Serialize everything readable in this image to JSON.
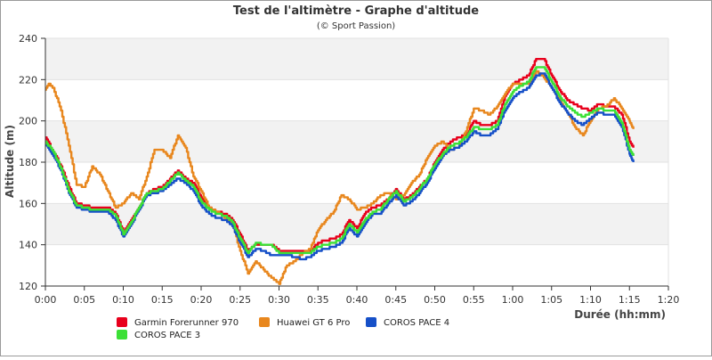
{
  "chart_data": {
    "type": "line",
    "title": "Test de l'altimètre - Graphe d'altitude",
    "subtitle": "(© Sport Passion)",
    "xlabel": "Durée (hh:mm)",
    "ylabel": "Altitude (m)",
    "xlim": [
      0,
      80
    ],
    "ylim": [
      120,
      240
    ],
    "x_ticks": [
      0,
      5,
      10,
      15,
      20,
      25,
      30,
      35,
      40,
      45,
      50,
      55,
      60,
      65,
      70,
      75,
      80
    ],
    "x_tick_labels": [
      "0:00",
      "0:05",
      "0:10",
      "0:15",
      "0:20",
      "0:25",
      "0:30",
      "0:35",
      "0:40",
      "0:45",
      "0:50",
      "0:55",
      "1:00",
      "1:05",
      "1:10",
      "1:15",
      "1:20"
    ],
    "y_ticks": [
      120,
      140,
      160,
      180,
      200,
      220,
      240
    ],
    "y_tick_labels": [
      "120",
      "140",
      "160",
      "180",
      "200",
      "220",
      "240"
    ],
    "grid": "horizontal",
    "legend_position": "bottom",
    "series": [
      {
        "name": "Garmin Forerunner 970",
        "color": "#e8001c",
        "points": [
          [
            0,
            192
          ],
          [
            1,
            185
          ],
          [
            2,
            178
          ],
          [
            3,
            168
          ],
          [
            4,
            160
          ],
          [
            5,
            159
          ],
          [
            6,
            158
          ],
          [
            7,
            158
          ],
          [
            8,
            158
          ],
          [
            9,
            155
          ],
          [
            10,
            146
          ],
          [
            11,
            152
          ],
          [
            12,
            158
          ],
          [
            13,
            165
          ],
          [
            14,
            167
          ],
          [
            15,
            168
          ],
          [
            16,
            172
          ],
          [
            17,
            176
          ],
          [
            18,
            172
          ],
          [
            19,
            170
          ],
          [
            20,
            163
          ],
          [
            21,
            158
          ],
          [
            22,
            156
          ],
          [
            23,
            155
          ],
          [
            24,
            152
          ],
          [
            25,
            145
          ],
          [
            26,
            137
          ],
          [
            27,
            140
          ],
          [
            28,
            140
          ],
          [
            29,
            140
          ],
          [
            30,
            137
          ],
          [
            31,
            137
          ],
          [
            32,
            137
          ],
          [
            33,
            137
          ],
          [
            34,
            137
          ],
          [
            35,
            141
          ],
          [
            36,
            142
          ],
          [
            37,
            143
          ],
          [
            38,
            145
          ],
          [
            39,
            152
          ],
          [
            40,
            148
          ],
          [
            41,
            155
          ],
          [
            42,
            158
          ],
          [
            43,
            159
          ],
          [
            44,
            162
          ],
          [
            45,
            167
          ],
          [
            46,
            162
          ],
          [
            47,
            164
          ],
          [
            48,
            168
          ],
          [
            49,
            172
          ],
          [
            50,
            180
          ],
          [
            51,
            186
          ],
          [
            52,
            190
          ],
          [
            53,
            192
          ],
          [
            54,
            193
          ],
          [
            55,
            200
          ],
          [
            56,
            198
          ],
          [
            57,
            198
          ],
          [
            58,
            200
          ],
          [
            59,
            212
          ],
          [
            60,
            218
          ],
          [
            61,
            220
          ],
          [
            62,
            222
          ],
          [
            63,
            230
          ],
          [
            64,
            230
          ],
          [
            65,
            222
          ],
          [
            66,
            215
          ],
          [
            67,
            210
          ],
          [
            68,
            208
          ],
          [
            69,
            206
          ],
          [
            70,
            205
          ],
          [
            71,
            208
          ],
          [
            72,
            207
          ],
          [
            73,
            207
          ],
          [
            74,
            203
          ],
          [
            75,
            190
          ],
          [
            75.5,
            187
          ]
        ]
      },
      {
        "name": "Huawei GT 6 Pro",
        "color": "#e8871e",
        "points": [
          [
            0,
            215
          ],
          [
            0.5,
            218
          ],
          [
            1,
            216
          ],
          [
            2,
            205
          ],
          [
            3,
            188
          ],
          [
            4,
            169
          ],
          [
            5,
            168
          ],
          [
            6,
            178
          ],
          [
            7,
            174
          ],
          [
            8,
            166
          ],
          [
            9,
            158
          ],
          [
            10,
            160
          ],
          [
            11,
            165
          ],
          [
            12,
            162
          ],
          [
            13,
            173
          ],
          [
            14,
            186
          ],
          [
            15,
            186
          ],
          [
            16,
            182
          ],
          [
            17,
            193
          ],
          [
            18,
            187
          ],
          [
            19,
            173
          ],
          [
            20,
            166
          ],
          [
            21,
            158
          ],
          [
            22,
            156
          ],
          [
            23,
            153
          ],
          [
            24,
            150
          ],
          [
            25,
            137
          ],
          [
            26,
            126
          ],
          [
            27,
            132
          ],
          [
            28,
            128
          ],
          [
            29,
            124
          ],
          [
            30,
            121
          ],
          [
            31,
            130
          ],
          [
            32,
            132
          ],
          [
            33,
            136
          ],
          [
            34,
            138
          ],
          [
            35,
            147
          ],
          [
            36,
            152
          ],
          [
            37,
            156
          ],
          [
            38,
            164
          ],
          [
            39,
            162
          ],
          [
            40,
            157
          ],
          [
            41,
            158
          ],
          [
            42,
            160
          ],
          [
            43,
            164
          ],
          [
            44,
            165
          ],
          [
            45,
            162
          ],
          [
            46,
            164
          ],
          [
            47,
            170
          ],
          [
            48,
            174
          ],
          [
            49,
            182
          ],
          [
            50,
            188
          ],
          [
            51,
            190
          ],
          [
            52,
            186
          ],
          [
            53,
            187
          ],
          [
            54,
            195
          ],
          [
            55,
            206
          ],
          [
            56,
            205
          ],
          [
            57,
            203
          ],
          [
            58,
            207
          ],
          [
            59,
            213
          ],
          [
            60,
            218
          ],
          [
            61,
            218
          ],
          [
            62,
            218
          ],
          [
            63,
            224
          ],
          [
            64,
            221
          ],
          [
            65,
            216
          ],
          [
            66,
            210
          ],
          [
            67,
            204
          ],
          [
            68,
            197
          ],
          [
            69,
            193
          ],
          [
            70,
            200
          ],
          [
            71,
            206
          ],
          [
            72,
            207
          ],
          [
            73,
            211
          ],
          [
            74,
            206
          ],
          [
            75,
            200
          ],
          [
            75.5,
            196
          ]
        ]
      },
      {
        "name": "COROS PACE 4",
        "color": "#1650c8",
        "points": [
          [
            0,
            189
          ],
          [
            1,
            183
          ],
          [
            2,
            176
          ],
          [
            3,
            165
          ],
          [
            4,
            158
          ],
          [
            5,
            157
          ],
          [
            6,
            156
          ],
          [
            7,
            156
          ],
          [
            8,
            156
          ],
          [
            9,
            152
          ],
          [
            10,
            144
          ],
          [
            11,
            150
          ],
          [
            12,
            157
          ],
          [
            13,
            164
          ],
          [
            14,
            165
          ],
          [
            15,
            166
          ],
          [
            16,
            169
          ],
          [
            17,
            172
          ],
          [
            18,
            170
          ],
          [
            19,
            166
          ],
          [
            20,
            159
          ],
          [
            21,
            155
          ],
          [
            22,
            153
          ],
          [
            23,
            152
          ],
          [
            24,
            149
          ],
          [
            25,
            141
          ],
          [
            26,
            134
          ],
          [
            27,
            138
          ],
          [
            28,
            137
          ],
          [
            29,
            135
          ],
          [
            30,
            135
          ],
          [
            31,
            135
          ],
          [
            32,
            134
          ],
          [
            33,
            133
          ],
          [
            34,
            134
          ],
          [
            35,
            137
          ],
          [
            36,
            138
          ],
          [
            37,
            139
          ],
          [
            38,
            141
          ],
          [
            39,
            148
          ],
          [
            40,
            144
          ],
          [
            41,
            150
          ],
          [
            42,
            155
          ],
          [
            43,
            155
          ],
          [
            44,
            160
          ],
          [
            45,
            164
          ],
          [
            46,
            159
          ],
          [
            47,
            161
          ],
          [
            48,
            165
          ],
          [
            49,
            170
          ],
          [
            50,
            177
          ],
          [
            51,
            183
          ],
          [
            52,
            186
          ],
          [
            53,
            187
          ],
          [
            54,
            190
          ],
          [
            55,
            195
          ],
          [
            56,
            193
          ],
          [
            57,
            193
          ],
          [
            58,
            196
          ],
          [
            59,
            205
          ],
          [
            60,
            211
          ],
          [
            61,
            214
          ],
          [
            62,
            216
          ],
          [
            63,
            222
          ],
          [
            64,
            223
          ],
          [
            65,
            216
          ],
          [
            66,
            209
          ],
          [
            67,
            204
          ],
          [
            68,
            200
          ],
          [
            69,
            198
          ],
          [
            70,
            201
          ],
          [
            71,
            204
          ],
          [
            72,
            203
          ],
          [
            73,
            203
          ],
          [
            74,
            197
          ],
          [
            75,
            184
          ],
          [
            75.5,
            180
          ]
        ]
      },
      {
        "name": "COROS PACE 3",
        "color": "#3ce036",
        "points": [
          [
            0,
            190
          ],
          [
            1,
            185
          ],
          [
            2,
            177
          ],
          [
            3,
            166
          ],
          [
            4,
            159
          ],
          [
            5,
            158
          ],
          [
            6,
            157
          ],
          [
            7,
            157
          ],
          [
            8,
            157
          ],
          [
            9,
            154
          ],
          [
            10,
            145
          ],
          [
            11,
            151
          ],
          [
            12,
            158
          ],
          [
            13,
            165
          ],
          [
            14,
            166
          ],
          [
            15,
            167
          ],
          [
            16,
            171
          ],
          [
            17,
            175
          ],
          [
            18,
            171
          ],
          [
            19,
            168
          ],
          [
            20,
            161
          ],
          [
            21,
            157
          ],
          [
            22,
            155
          ],
          [
            23,
            154
          ],
          [
            24,
            151
          ],
          [
            25,
            143
          ],
          [
            26,
            136
          ],
          [
            27,
            141
          ],
          [
            28,
            140
          ],
          [
            29,
            140
          ],
          [
            30,
            136
          ],
          [
            31,
            136
          ],
          [
            32,
            136
          ],
          [
            33,
            136
          ],
          [
            34,
            136
          ],
          [
            35,
            139
          ],
          [
            36,
            140
          ],
          [
            37,
            141
          ],
          [
            38,
            143
          ],
          [
            39,
            150
          ],
          [
            40,
            146
          ],
          [
            41,
            152
          ],
          [
            42,
            156
          ],
          [
            43,
            157
          ],
          [
            44,
            162
          ],
          [
            45,
            166
          ],
          [
            46,
            161
          ],
          [
            47,
            163
          ],
          [
            48,
            167
          ],
          [
            49,
            172
          ],
          [
            50,
            179
          ],
          [
            51,
            184
          ],
          [
            52,
            188
          ],
          [
            53,
            189
          ],
          [
            54,
            192
          ],
          [
            55,
            197
          ],
          [
            56,
            196
          ],
          [
            57,
            196
          ],
          [
            58,
            198
          ],
          [
            59,
            208
          ],
          [
            60,
            214
          ],
          [
            61,
            217
          ],
          [
            62,
            219
          ],
          [
            63,
            226
          ],
          [
            64,
            226
          ],
          [
            65,
            219
          ],
          [
            66,
            212
          ],
          [
            67,
            207
          ],
          [
            68,
            204
          ],
          [
            69,
            202
          ],
          [
            70,
            204
          ],
          [
            71,
            206
          ],
          [
            72,
            205
          ],
          [
            73,
            205
          ],
          [
            74,
            199
          ],
          [
            75,
            186
          ],
          [
            75.5,
            183
          ]
        ]
      }
    ]
  }
}
